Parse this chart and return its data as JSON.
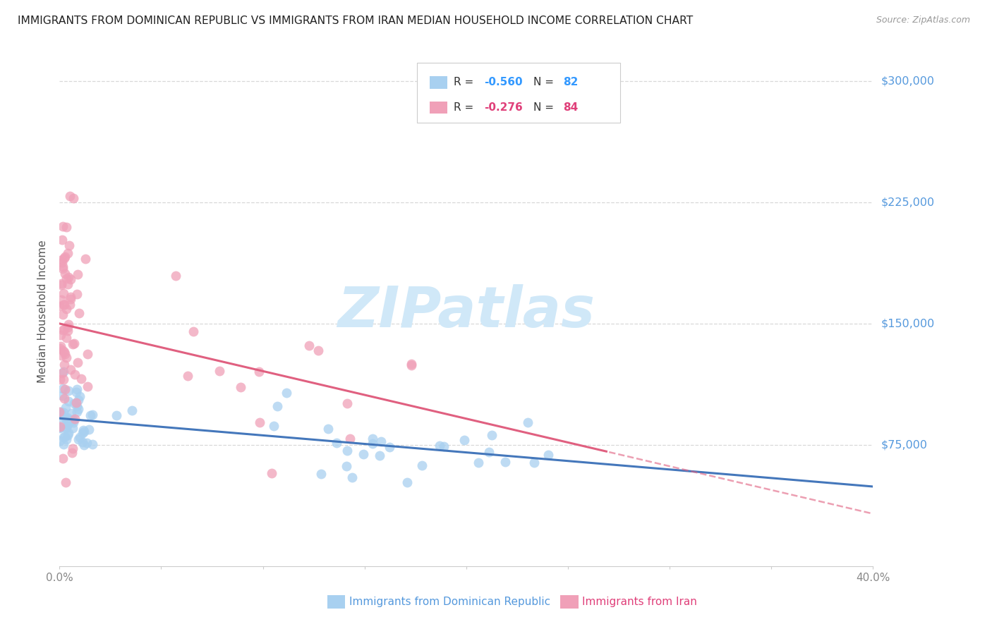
{
  "title": "IMMIGRANTS FROM DOMINICAN REPUBLIC VS IMMIGRANTS FROM IRAN MEDIAN HOUSEHOLD INCOME CORRELATION CHART",
  "source": "Source: ZipAtlas.com",
  "ylabel": "Median Household Income",
  "xlim": [
    0.0,
    0.4
  ],
  "ylim": [
    0,
    315000
  ],
  "color_blue_scatter": "#a8d0f0",
  "color_pink_scatter": "#f0a0b8",
  "color_blue_line": "#4477bb",
  "color_pink_line": "#e06080",
  "watermark_color": "#d0e8f8",
  "title_color": "#222222",
  "source_color": "#999999",
  "axis_label_color": "#888888",
  "right_tick_color": "#5599dd",
  "ylabel_color": "#555555",
  "grid_color": "#d8d8d8",
  "legend_border_color": "#cccccc",
  "legend_text_color": "#333333",
  "legend_blue_val_color": "#3399ff",
  "legend_pink_val_color": "#e0407a",
  "bottom_blue_label_color": "#5599dd",
  "bottom_pink_label_color": "#e0407a"
}
